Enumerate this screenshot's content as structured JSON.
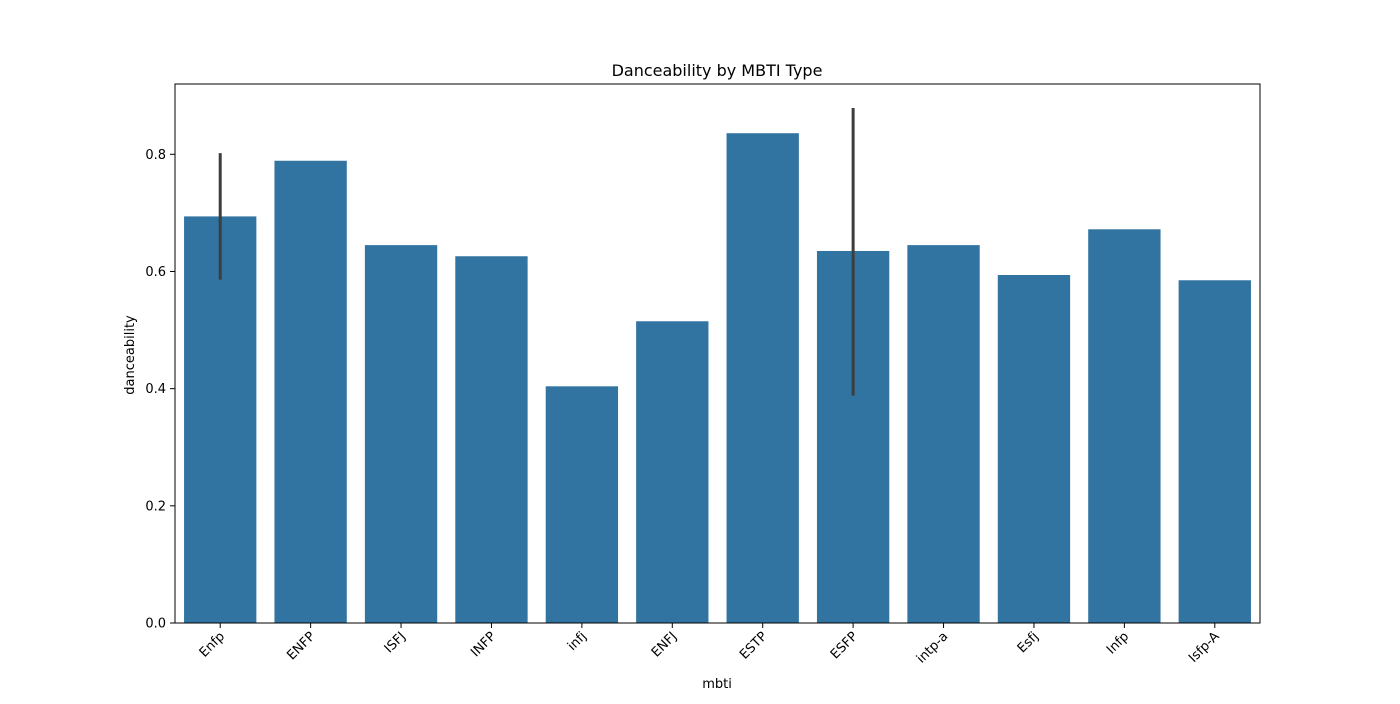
{
  "chart_data": {
    "type": "bar",
    "title": "Danceability by MBTI Type",
    "xlabel": "mbti",
    "ylabel": "danceability",
    "categories": [
      "Enfp",
      "ENFP",
      "ISFJ",
      "INFP",
      "infj",
      "ENFJ",
      "ESTP",
      "ESFP",
      "intp-a",
      "Esfj",
      "Infp",
      "Isfp-A"
    ],
    "values": [
      0.694,
      0.789,
      0.645,
      0.626,
      0.404,
      0.515,
      0.836,
      0.635,
      0.645,
      0.594,
      0.672,
      0.585
    ],
    "error_bars": [
      {
        "category": "Enfp",
        "low": 0.586,
        "high": 0.802
      },
      {
        "category": "ESFP",
        "low": 0.388,
        "high": 0.879
      }
    ],
    "ylim": [
      0,
      0.92
    ],
    "yticks": [
      0.0,
      0.2,
      0.4,
      0.6,
      0.8
    ],
    "ytick_labels": [
      "0.0",
      "0.2",
      "0.4",
      "0.6",
      "0.8"
    ],
    "grid": false,
    "legend": "none",
    "colors": {
      "bar": "#3274a1",
      "error_bar": "#3d3d3d",
      "axis": "#000000",
      "background": "#ffffff"
    }
  }
}
